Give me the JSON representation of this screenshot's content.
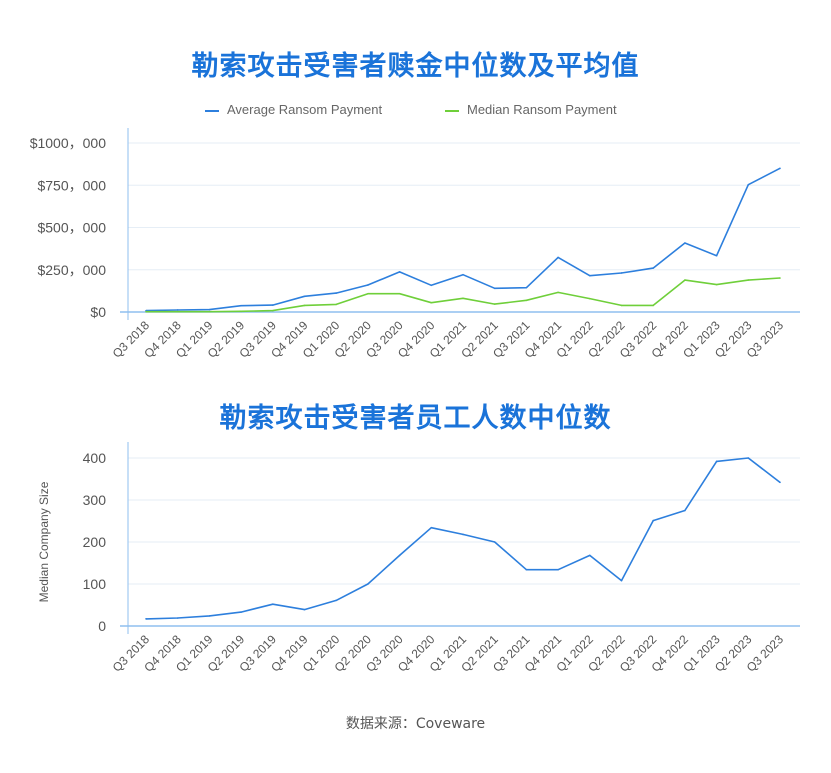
{
  "colors": {
    "title": "#1a73d9",
    "average": "#2d7fdd",
    "median": "#6fcf3a",
    "grid": "#e6eef6",
    "axis": "#8fbfef"
  },
  "chart_data": [
    {
      "type": "line",
      "title": "勒索攻击受害者赎金中位数及平均值",
      "categories": [
        "Q3 2018",
        "Q4 2018",
        "Q1 2019",
        "Q2 2019",
        "Q3 2019",
        "Q4 2019",
        "Q1 2020",
        "Q2 2020",
        "Q3 2020",
        "Q4 2020",
        "Q1 2021",
        "Q2 2021",
        "Q3 2021",
        "Q4 2021",
        "Q1 2022",
        "Q2 2022",
        "Q3 2022",
        "Q4 2022",
        "Q1 2023",
        "Q2 2023",
        "Q3 2023"
      ],
      "series": [
        {
          "name": "Average Ransom Payment",
          "color": "#2d7fdd",
          "values": [
            8000,
            12000,
            14000,
            37000,
            41000,
            93000,
            112000,
            160000,
            237000,
            158000,
            221000,
            140000,
            144000,
            323000,
            215000,
            231000,
            260000,
            408000,
            333000,
            753000,
            850000
          ]
        },
        {
          "name": "Median Ransom Payment",
          "color": "#6fcf3a",
          "values": [
            2000,
            2000,
            2000,
            4000,
            8000,
            39000,
            45000,
            108000,
            108000,
            55000,
            81000,
            47000,
            69000,
            116000,
            79000,
            39000,
            39000,
            189000,
            162000,
            189000,
            201000
          ]
        }
      ],
      "ylim": [
        0,
        1000000
      ],
      "yticks": [
        0,
        250000,
        500000,
        750000,
        1000000
      ],
      "ytick_labels": [
        "$0",
        "$250，000",
        "$500，000",
        "$750，000",
        "$1000，000"
      ],
      "legend": "top",
      "grid": true,
      "xlabel": "",
      "ylabel": ""
    },
    {
      "type": "line",
      "title": "勒索攻击受害者员工人数中位数",
      "categories": [
        "Q3 2018",
        "Q4 2018",
        "Q1 2019",
        "Q2 2019",
        "Q3 2019",
        "Q4 2019",
        "Q1 2020",
        "Q2 2020",
        "Q3 2020",
        "Q4 2020",
        "Q1 2021",
        "Q2 2021",
        "Q3 2021",
        "Q4 2021",
        "Q1 2022",
        "Q2 2022",
        "Q3 2022",
        "Q4 2022",
        "Q1 2023",
        "Q2 2023",
        "Q3 2023"
      ],
      "series": [
        {
          "color": "#2d7fdd",
          "values": [
            17,
            19,
            24,
            33,
            52,
            39,
            61,
            100,
            168,
            234,
            218,
            200,
            134,
            134,
            168,
            108,
            251,
            275,
            392,
            400,
            342
          ]
        }
      ],
      "ylim": [
        0,
        400
      ],
      "yticks": [
        0,
        100,
        200,
        300,
        400
      ],
      "ytick_labels": [
        "0",
        "100",
        "200",
        "300",
        "400"
      ],
      "grid": true,
      "xlabel": "",
      "ylabel": "Median Company Size"
    }
  ],
  "source": "数据来源：Coveware"
}
